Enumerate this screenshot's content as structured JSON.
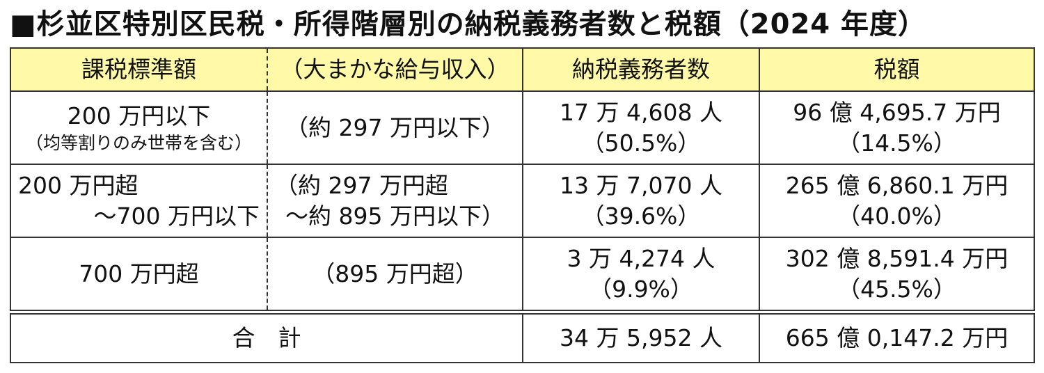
{
  "title": "■杉並区特別区民税・所得階層別の納税義務者数と税額（2024 年度）",
  "table": {
    "header": [
      "課税標準額",
      "（大まかな給与収入）",
      "納税義務者数",
      "税額"
    ],
    "rows": [
      [
        [
          "200 万円以下",
          "（均等割りのみ世帯を含む）"
        ],
        [
          "（約 297 万円以下）"
        ],
        [
          "17 万 4,608 人",
          "（50.5%）"
        ],
        [
          "96 億 4,695.7 万円",
          "（14.5%）"
        ]
      ],
      [
        [
          "200 万円超",
          "～700 万円以下"
        ],
        [
          "（約 297 万円超",
          "～約 895 万円以下）"
        ],
        [
          "13 万 7,070 人",
          "（39.6%）"
        ],
        [
          "265 億 6,860.1 万円",
          "（40.0%）"
        ]
      ],
      [
        [
          "700 万円超"
        ],
        [
          "（895 万円超）"
        ],
        [
          "3 万 4,274 人",
          "（9.9%）"
        ],
        [
          "302 億 8,591.4 万円",
          "（45.5%）"
        ]
      ]
    ],
    "total": {
      "label": "合　計",
      "taxpayers": "34 万 5,952 人",
      "amount": "665 億 0,147.2 万円"
    }
  }
}
